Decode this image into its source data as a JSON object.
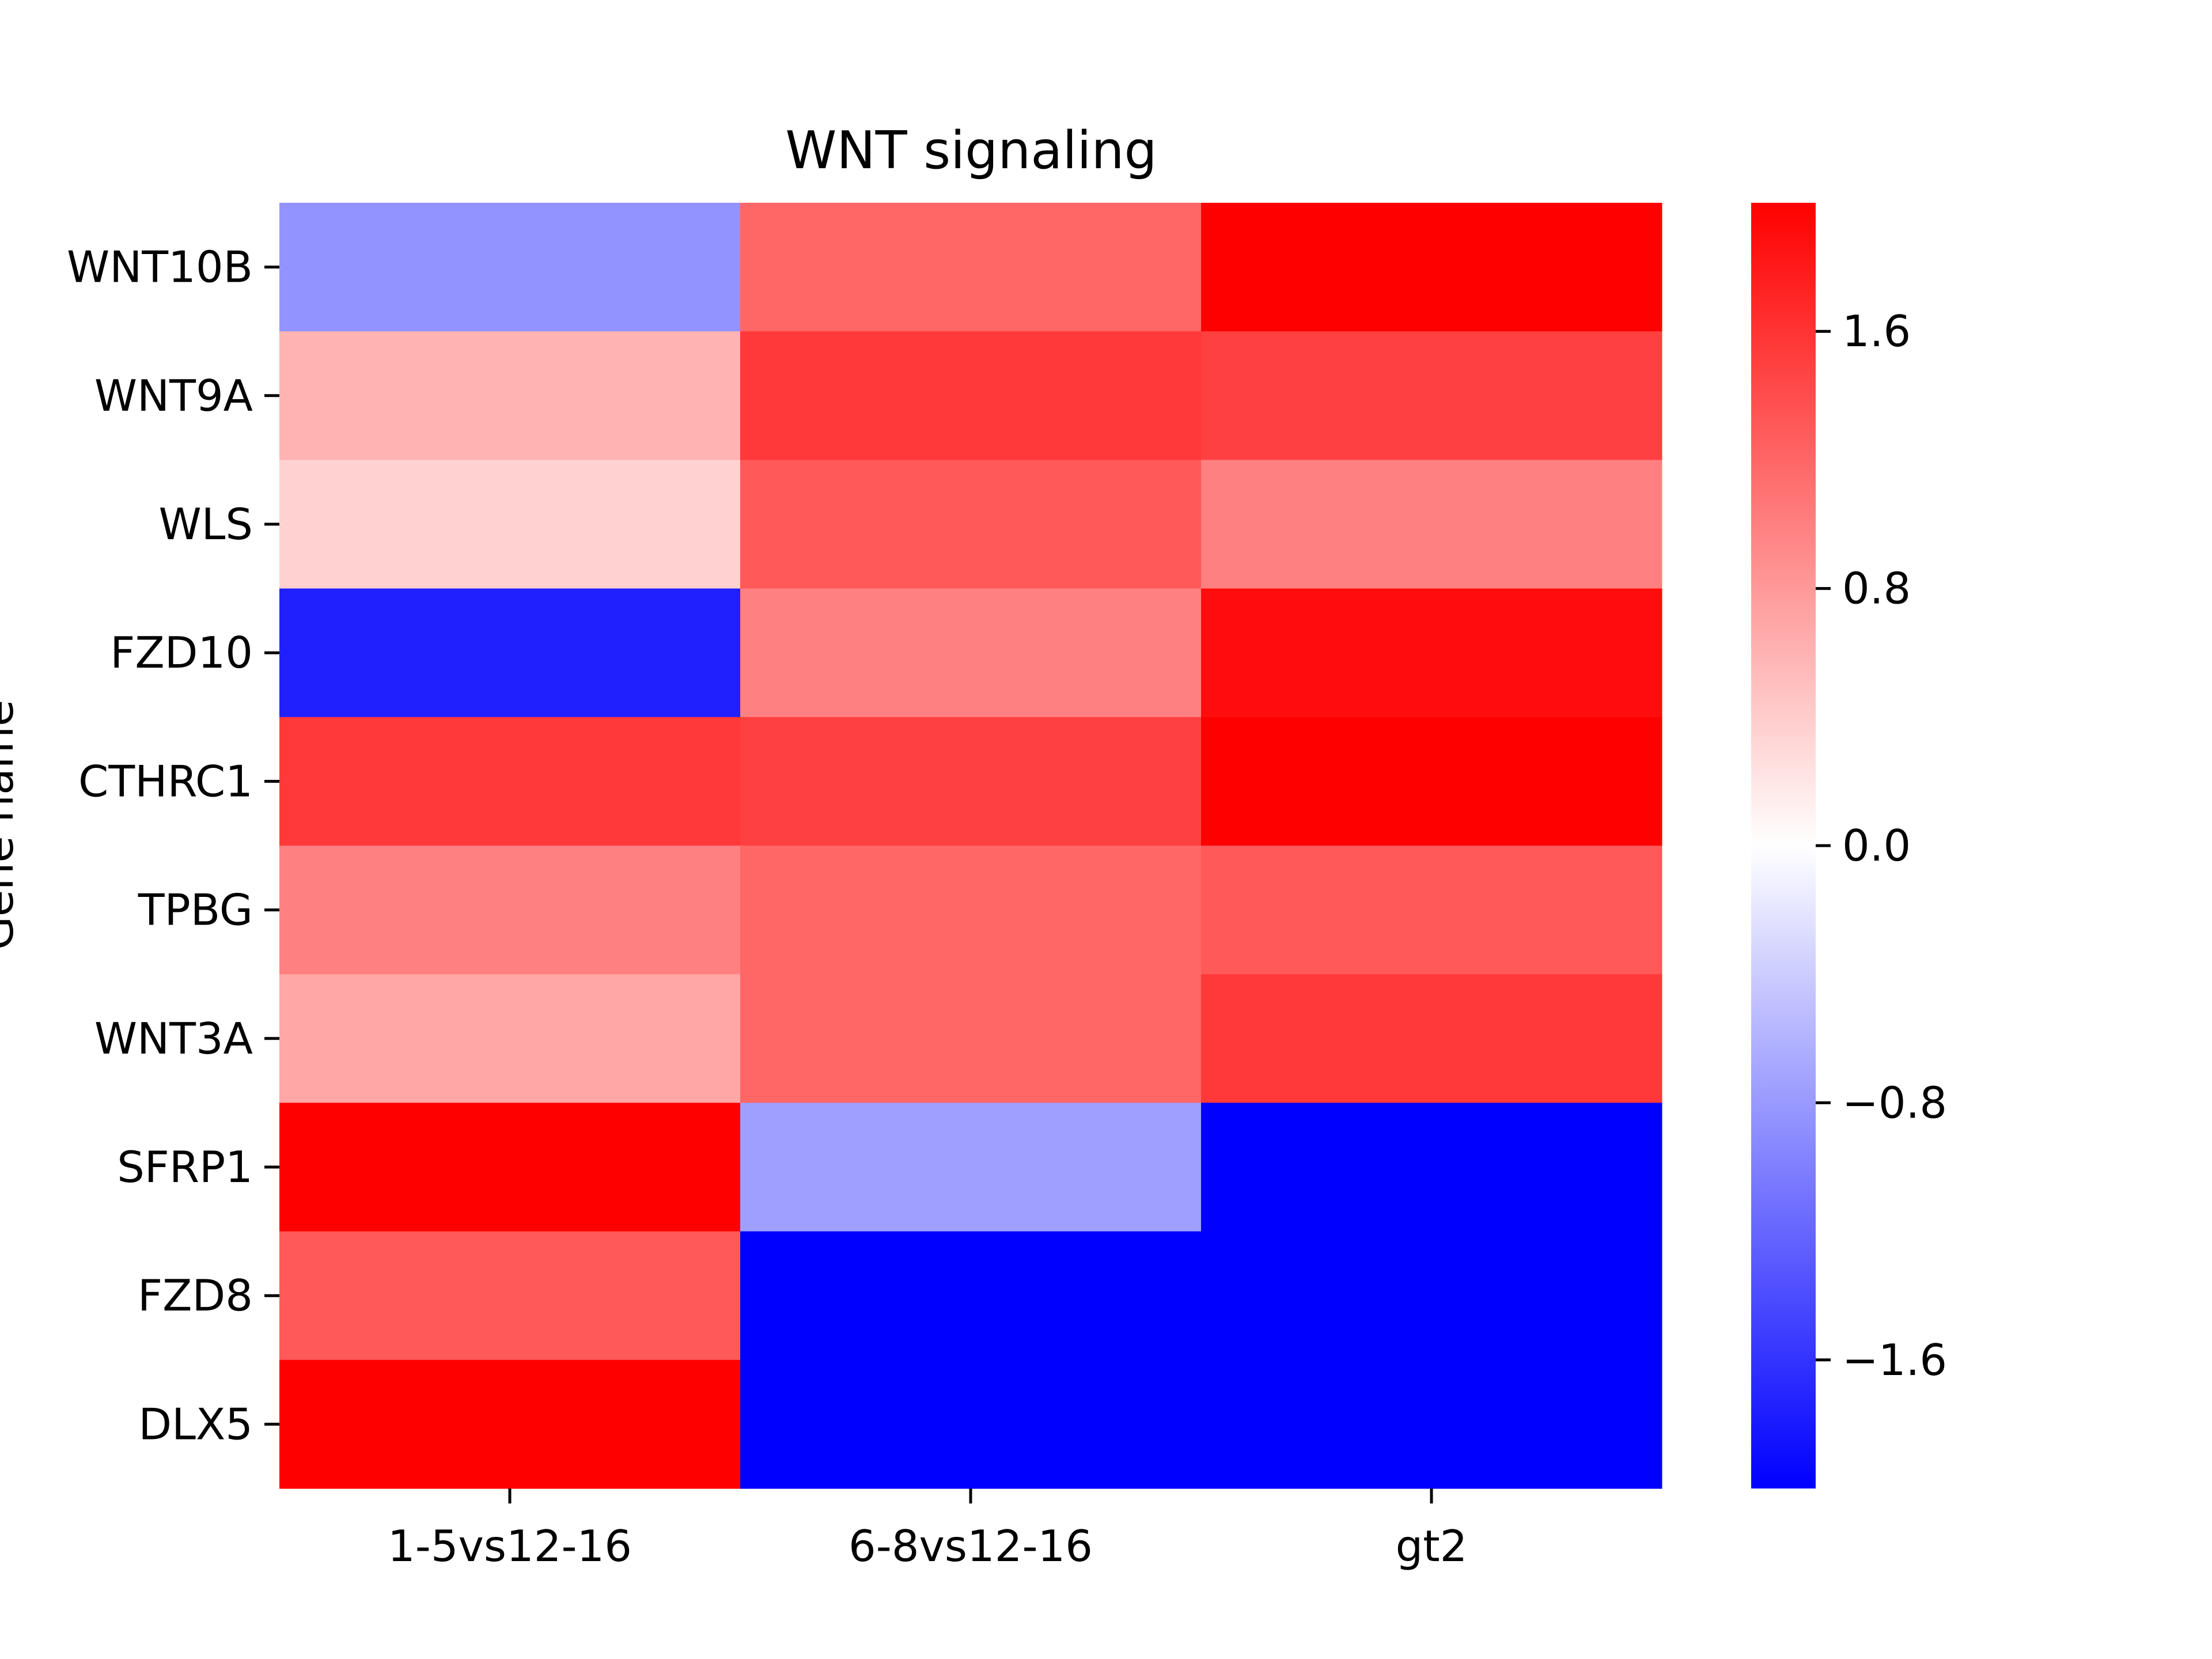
{
  "chart_data": {
    "type": "heatmap",
    "title": "WNT signaling",
    "ylabel": "Gene name",
    "xlabel": "",
    "columns": [
      "1-5vs12-16",
      "6-8vs12-16",
      "gt2"
    ],
    "rows": [
      "WNT10B",
      "WNT9A",
      "WLS",
      "FZD10",
      "CTHRC1",
      "TPBG",
      "WNT3A",
      "SFRP1",
      "FZD8",
      "DLX5"
    ],
    "values": [
      [
        -0.85,
        1.2,
        2.0
      ],
      [
        0.6,
        1.55,
        1.5
      ],
      [
        0.35,
        1.3,
        1.0
      ],
      [
        -1.75,
        1.0,
        1.9
      ],
      [
        1.55,
        1.5,
        2.0
      ],
      [
        1.0,
        1.2,
        1.3
      ],
      [
        0.7,
        1.2,
        1.55
      ],
      [
        2.0,
        -0.75,
        -2.0
      ],
      [
        1.3,
        -2.0,
        -2.0
      ],
      [
        2.0,
        -2.0,
        -2.0
      ]
    ],
    "colorscale": {
      "name": "bwr",
      "vmin": -2.0,
      "vmax": 2.0,
      "low": "#0000ff",
      "mid": "#ffffff",
      "high": "#ff0000"
    },
    "colorbar_ticks": [
      "1.6",
      "0.8",
      "0.0",
      "−0.8",
      "−1.6"
    ],
    "colorbar_tick_values": [
      1.6,
      0.8,
      0.0,
      -0.8,
      -1.6
    ]
  }
}
